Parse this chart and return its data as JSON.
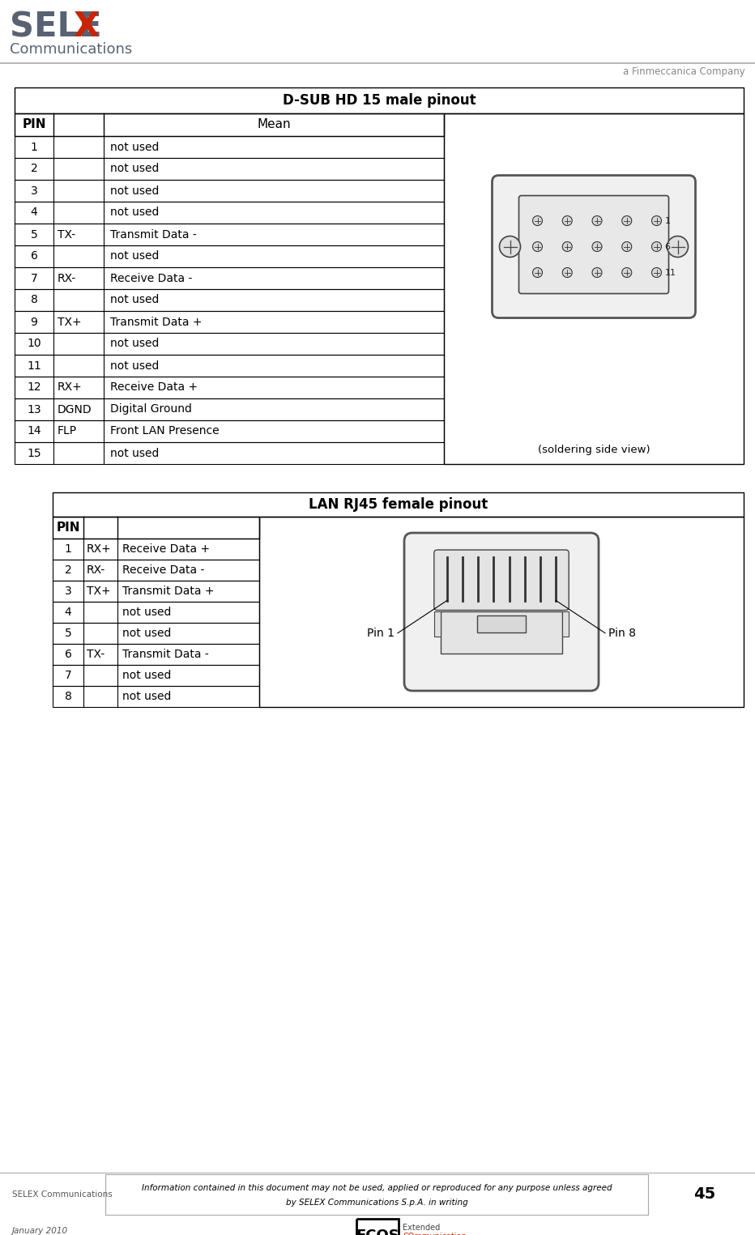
{
  "bg_color": "#ffffff",
  "selex_sel_color": "#555566",
  "selex_x_color": "#cc2200",
  "selex_comm_color": "#444455",
  "finmeccanica_color": "#777777",
  "dsub_title": "D-SUB HD 15 male pinout",
  "dsub_rows": [
    [
      "1",
      "",
      "not used"
    ],
    [
      "2",
      "",
      "not used"
    ],
    [
      "3",
      "",
      "not used"
    ],
    [
      "4",
      "",
      "not used"
    ],
    [
      "5",
      "TX-",
      "Transmit Data -"
    ],
    [
      "6",
      "",
      "not used"
    ],
    [
      "7",
      "RX-",
      "Receive Data -"
    ],
    [
      "8",
      "",
      "not used"
    ],
    [
      "9",
      "TX+",
      "Transmit Data +"
    ],
    [
      "10",
      "",
      "not used"
    ],
    [
      "11",
      "",
      "not used"
    ],
    [
      "12",
      "RX+",
      "Receive Data +"
    ],
    [
      "13",
      "DGND",
      "Digital Ground"
    ],
    [
      "14",
      "FLP",
      "Front LAN Presence"
    ],
    [
      "15",
      "",
      "not used"
    ]
  ],
  "dsub_soldering_text": "(soldering side view)",
  "lan_title": "LAN RJ45 female pinout",
  "lan_rows": [
    [
      "1",
      "RX+",
      "Receive Data +"
    ],
    [
      "2",
      "RX-",
      "Receive Data -"
    ],
    [
      "3",
      "TX+",
      "Transmit Data +"
    ],
    [
      "4",
      "",
      "not used"
    ],
    [
      "5",
      "",
      "not used"
    ],
    [
      "6",
      "TX-",
      "Transmit Data -"
    ],
    [
      "7",
      "",
      "not used"
    ],
    [
      "8",
      "",
      "not used"
    ]
  ],
  "footer_left": "SELEX Communications",
  "footer_center_line1": "Information contained in this document may not be used, applied or reproduced for any purpose unless agreed",
  "footer_center_line2": "by SELEX Communications S.p.A. in writing",
  "footer_page": "45",
  "footer_date": "January 2010"
}
